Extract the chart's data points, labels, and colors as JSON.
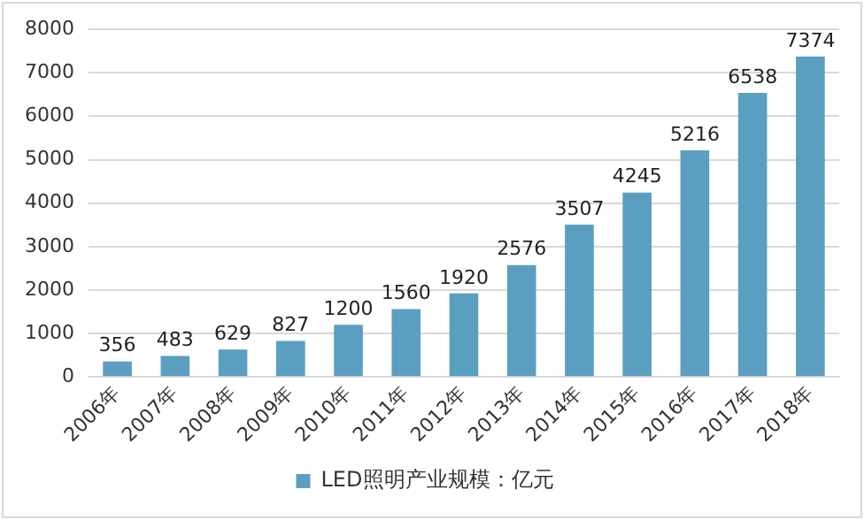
{
  "chart_data": {
    "type": "bar",
    "categories": [
      "2006年",
      "2007年",
      "2008年",
      "2009年",
      "2010年",
      "2011年",
      "2012年",
      "2013年",
      "2014年",
      "2015年",
      "2016年",
      "2017年",
      "2018年"
    ],
    "series": [
      {
        "name": "LED照明产业规模：亿元",
        "color": "#5a9fbf",
        "values": [
          356,
          483,
          629,
          827,
          1200,
          1560,
          1920,
          2576,
          3507,
          4245,
          5216,
          6538,
          7374
        ]
      }
    ],
    "ylim": [
      0,
      8000
    ],
    "yticks": [
      0,
      1000,
      2000,
      3000,
      4000,
      5000,
      6000,
      7000,
      8000
    ],
    "grid": "y",
    "legend": "bottom",
    "data_labels": true
  }
}
